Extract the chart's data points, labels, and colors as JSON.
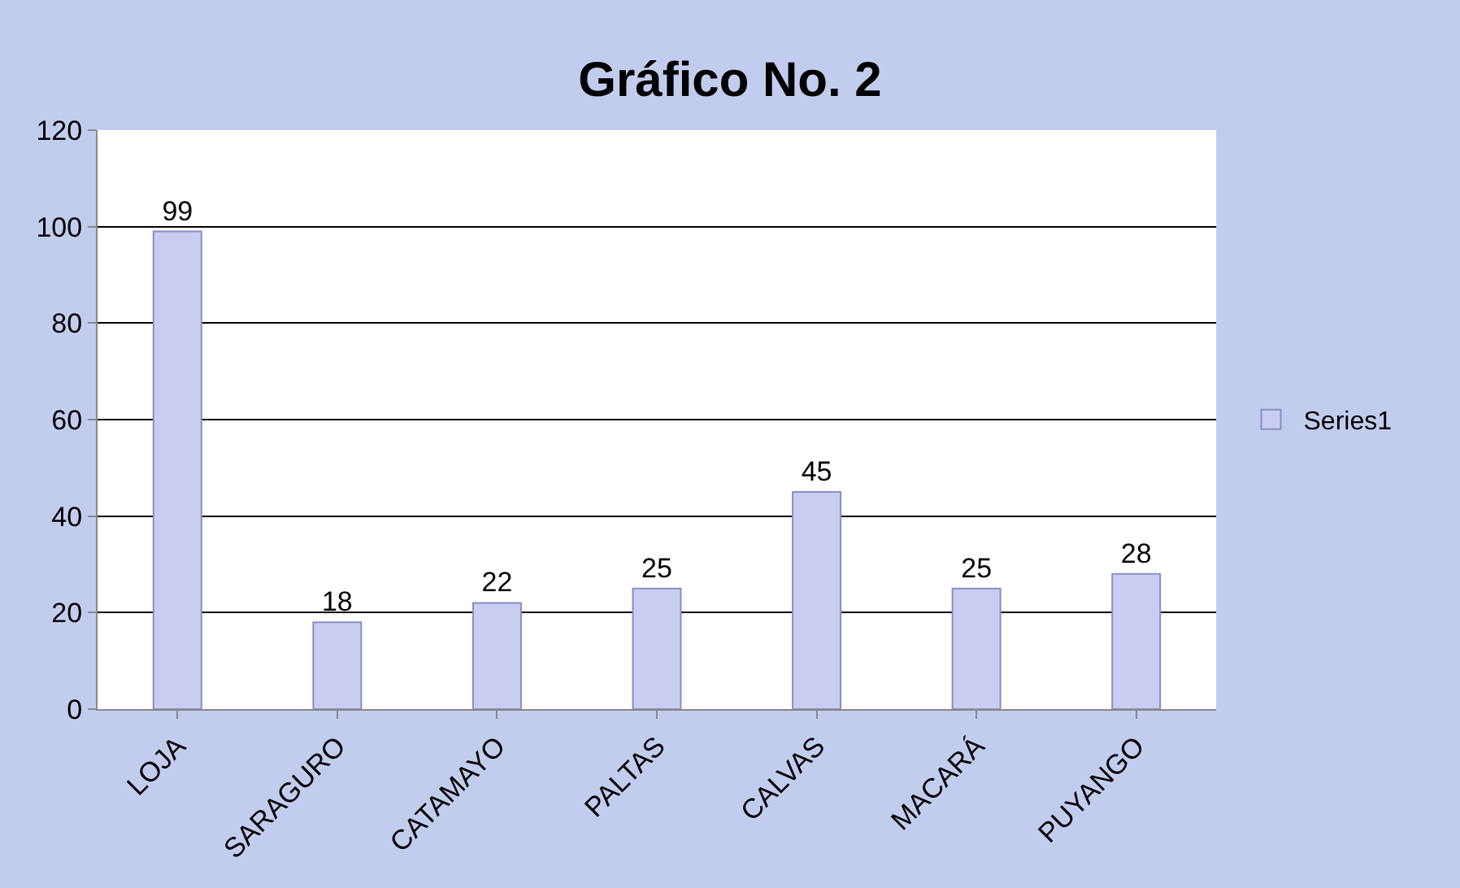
{
  "chart_data": {
    "type": "bar",
    "title": "Gráfico No. 2",
    "categories": [
      "LOJA",
      "SARAGURO",
      "CATAMAYO",
      "PALTAS",
      "CALVAS",
      "MACARÁ",
      "PUYANGO"
    ],
    "series": [
      {
        "name": "Series1",
        "color": "#c9cdf2",
        "values": [
          99,
          18,
          22,
          25,
          45,
          25,
          28
        ]
      }
    ],
    "ylim": [
      0,
      120
    ],
    "yticks": [
      0,
      20,
      40,
      60,
      80,
      100,
      120
    ],
    "grid": "y",
    "legend": "right",
    "data_labels": true
  }
}
